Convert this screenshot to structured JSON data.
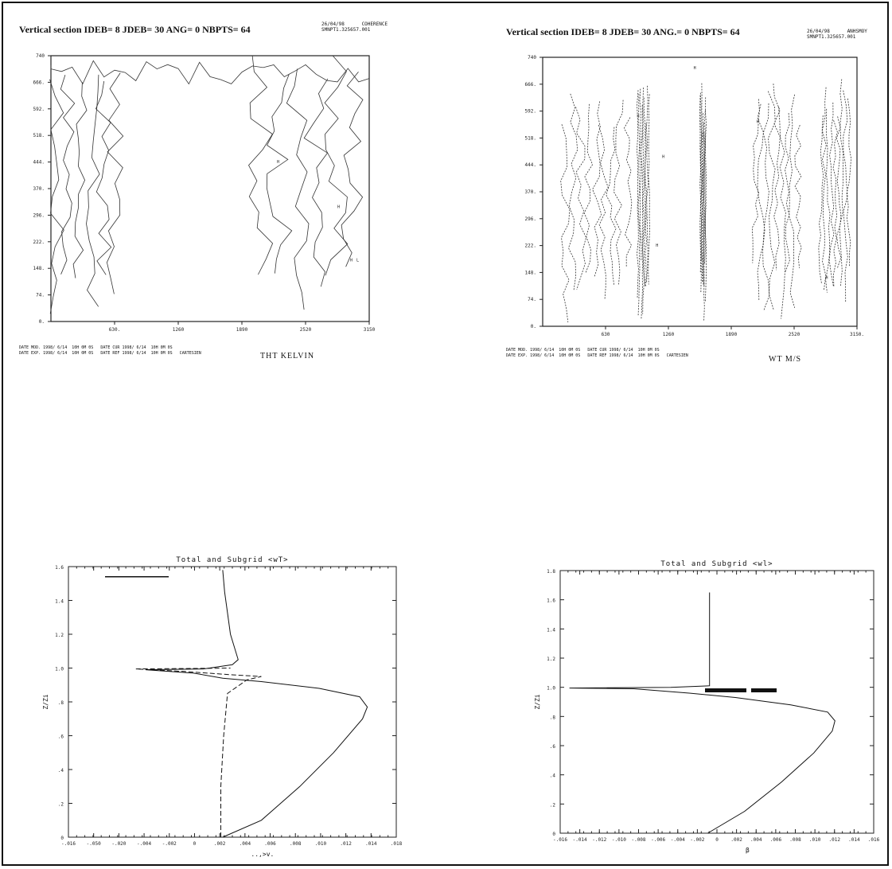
{
  "sections": {
    "left": {
      "title": "Vertical section IDEB=  8 JDEB= 30 ANG=  0 NBPTS= 64",
      "meta": [
        "26/04/98      COHERENCE",
        "SMNPT1.325657.001"
      ],
      "footer": [
        "DATE MOD. 1998/ 6/14  10H 0M 0S   DATE CUR 1998/ 6/14  10H 0M 0S",
        "DATE EXP. 1998/ 6/14  10H 0M 0S   DATE REF 1998/ 6/14  10H 0M 0S   CARTESIEN"
      ],
      "field": "THT   KELVIN",
      "yticks": [
        "740",
        "666.",
        "592.",
        "518.",
        "444.",
        "370.",
        "296.",
        "222.",
        "148.",
        "74.",
        "0."
      ],
      "xticks": [
        "630.",
        "1260",
        "1890",
        "2520",
        "3150"
      ],
      "highlow": [
        "H",
        "H",
        "H",
        "L"
      ]
    },
    "right": {
      "title": "Vertical section IDEB=  8 JDEB= 30 ANG.=  0 NBPTS= 64",
      "meta": [
        "26/04/98      ANHSMOY",
        "SMNPT1.325657.001"
      ],
      "footer": [
        "DATE MOD. 1998/ 6/14  10H 0M 0S   DATE CUR 1998/ 6/14  10H 0M 0S",
        "DATE EXP. 1998/ 6/14  10H 0M 0S   DATE REF 1998/ 6/14  10H 0M 0S   CARTESIEN"
      ],
      "field": "WT   M/S",
      "yticks": [
        "740",
        "666.",
        "592.",
        "518.",
        "444.",
        "370.",
        "296.",
        "222.",
        "148.",
        "74.",
        "0."
      ],
      "xticks": [
        "630",
        "1260",
        "1890",
        "2520",
        "3150."
      ],
      "highlow": [
        "H",
        "H",
        "H",
        "H",
        "H",
        "H"
      ]
    }
  },
  "chart_data": [
    {
      "type": "line",
      "title": "Total and Subgrid <wT>",
      "xlabel": "..,>v.",
      "ylabel": "Z/Zi",
      "xlim": [
        -0.016,
        0.018
      ],
      "ylim": [
        0,
        1.6
      ],
      "xticks": [
        "-.016",
        "-.050",
        "-.020",
        "-.004",
        "-.002",
        "0",
        ".002",
        ".004",
        ".006",
        ".008",
        ".010",
        ".012",
        ".014",
        ".018"
      ],
      "yticks": [
        "0",
        ".2",
        ".4",
        ".6",
        ".8",
        "1.0",
        "1.2",
        "1.4",
        "1.6"
      ],
      "series": [
        {
          "style": "solid",
          "points": [
            [
              0,
              0
            ],
            [
              0.004,
              0.1
            ],
            [
              0.008,
              0.3
            ],
            [
              0.0115,
              0.5
            ],
            [
              0.0145,
              0.7
            ],
            [
              0.015,
              0.77
            ],
            [
              0.0142,
              0.83
            ],
            [
              0.01,
              0.88
            ],
            [
              0.004,
              0.92
            ],
            [
              0,
              0.94
            ],
            [
              -0.003,
              0.97
            ],
            [
              -0.008,
              0.99
            ],
            [
              -0.002,
              0.995
            ],
            [
              0.001,
              1.02
            ],
            [
              0.0016,
              1.05
            ],
            [
              0.0008,
              1.2
            ],
            [
              0.0002,
              1.45
            ],
            [
              0,
              1.58
            ]
          ]
        },
        {
          "style": "dashed",
          "points": [
            [
              -0.0002,
              0
            ],
            [
              -0.0002,
              0.3
            ],
            [
              0.0001,
              0.6
            ],
            [
              0.0005,
              0.85
            ],
            [
              0.0025,
              0.93
            ],
            [
              0.004,
              0.95
            ],
            [
              0.001,
              0.96
            ],
            [
              -0.004,
              0.98
            ],
            [
              -0.009,
              0.995
            ],
            [
              -0.002,
              0.998
            ],
            [
              0.0008,
              1.0
            ]
          ]
        }
      ]
    },
    {
      "type": "line",
      "title": "Total and Subgrid <wl>",
      "xlabel": "β",
      "ylabel": "Z/Zi",
      "xlim": [
        -0.016,
        0.018
      ],
      "ylim": [
        0,
        1.8
      ],
      "xticks": [
        "-.016",
        "-.014",
        "-.012",
        "-.010",
        "-.008",
        "-.006",
        "-.004",
        "-.002",
        "0",
        ".002",
        ".004",
        ".006",
        ".008",
        ".010",
        ".012",
        ".014",
        ".016"
      ],
      "yticks": [
        "0",
        ".2",
        ".4",
        ".6",
        ".8",
        "1.0",
        "1.2",
        "1.4",
        "1.6",
        "1.8"
      ],
      "series": [
        {
          "style": "solid",
          "points": [
            [
              0,
              0
            ],
            [
              0.004,
              0.15
            ],
            [
              0.008,
              0.35
            ],
            [
              0.0115,
              0.55
            ],
            [
              0.0135,
              0.7
            ],
            [
              0.0138,
              0.77
            ],
            [
              0.013,
              0.83
            ],
            [
              0.009,
              0.88
            ],
            [
              0.003,
              0.93
            ],
            [
              -0.002,
              0.96
            ],
            [
              -0.008,
              0.99
            ],
            [
              -0.015,
              0.995
            ],
            [
              -0.004,
              1.0
            ],
            [
              0.0002,
              1.01
            ],
            [
              0.0002,
              1.3
            ],
            [
              0.0002,
              1.65
            ]
          ]
        }
      ]
    }
  ]
}
